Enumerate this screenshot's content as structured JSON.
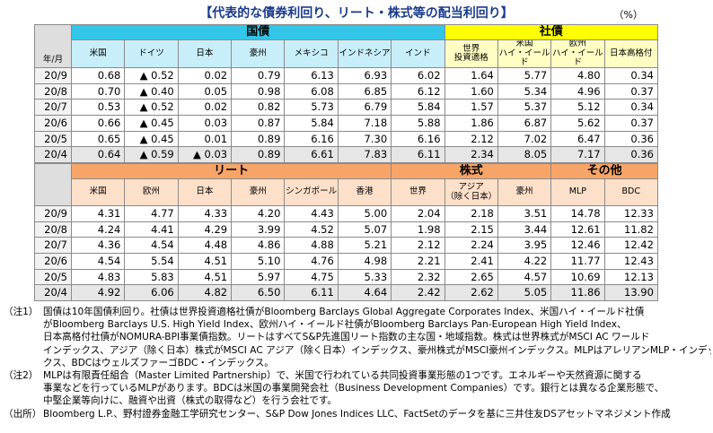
{
  "title": "【代表的な債券利回り、リート・株式等の配当利回り】",
  "unit": "（%）",
  "top_table": {
    "corner": "年/月",
    "groups": [
      {
        "label": "国債",
        "columns": [
          "米国",
          "ドイツ",
          "日本",
          "豪州",
          "メキシコ",
          "インドネシア",
          "インド"
        ]
      },
      {
        "label": "社債",
        "columns": [
          "世界\n投資適格",
          "米国\nハイ・イールド",
          "欧州\nハイ・イールド",
          "日本高格付"
        ]
      }
    ],
    "rows": [
      {
        "period": "20/9",
        "cells": [
          "0.68",
          "▲ 0.52",
          "0.02",
          "0.79",
          "6.13",
          "6.93",
          "6.02",
          "1.64",
          "5.77",
          "4.80",
          "0.34"
        ]
      },
      {
        "period": "20/8",
        "cells": [
          "0.70",
          "▲ 0.40",
          "0.05",
          "0.98",
          "6.08",
          "6.85",
          "6.12",
          "1.60",
          "5.34",
          "4.96",
          "0.37"
        ]
      },
      {
        "period": "20/7",
        "cells": [
          "0.53",
          "▲ 0.52",
          "0.02",
          "0.82",
          "5.73",
          "6.79",
          "5.84",
          "1.57",
          "5.37",
          "5.12",
          "0.34"
        ]
      },
      {
        "period": "20/6",
        "cells": [
          "0.66",
          "▲ 0.45",
          "0.03",
          "0.87",
          "5.84",
          "7.18",
          "5.88",
          "1.86",
          "6.87",
          "5.62",
          "0.37"
        ]
      },
      {
        "period": "20/5",
        "cells": [
          "0.65",
          "▲ 0.45",
          "0.01",
          "0.89",
          "6.16",
          "7.30",
          "6.16",
          "2.12",
          "7.02",
          "6.47",
          "0.36"
        ]
      },
      {
        "period": "20/4",
        "cells": [
          "0.64",
          "▲ 0.59",
          "▲ 0.03",
          "0.89",
          "6.61",
          "7.83",
          "6.11",
          "2.34",
          "8.05",
          "7.17",
          "0.36"
        ]
      }
    ]
  },
  "bottom_table": {
    "groups": [
      {
        "label": "リート",
        "columns": [
          "米国",
          "欧州",
          "日本",
          "豪州",
          "シンガポール",
          "香港"
        ]
      },
      {
        "label": "株式",
        "columns": [
          "世界",
          "アジア\n（除く日本）",
          "豪州"
        ]
      },
      {
        "label": "その他",
        "columns": [
          "MLP",
          "BDC"
        ]
      }
    ],
    "rows": [
      {
        "period": "20/9",
        "cells": [
          "4.31",
          "4.77",
          "4.33",
          "4.20",
          "4.43",
          "5.00",
          "2.04",
          "2.18",
          "3.51",
          "14.78",
          "12.33"
        ]
      },
      {
        "period": "20/8",
        "cells": [
          "4.24",
          "4.41",
          "4.29",
          "3.99",
          "4.52",
          "5.07",
          "1.98",
          "2.15",
          "3.44",
          "12.61",
          "11.82"
        ]
      },
      {
        "period": "20/7",
        "cells": [
          "4.36",
          "4.54",
          "4.48",
          "4.86",
          "4.88",
          "5.21",
          "2.12",
          "2.24",
          "3.95",
          "12.46",
          "12.42"
        ]
      },
      {
        "period": "20/6",
        "cells": [
          "4.54",
          "5.54",
          "4.51",
          "5.10",
          "4.76",
          "4.98",
          "2.21",
          "2.41",
          "4.22",
          "11.77",
          "12.43"
        ]
      },
      {
        "period": "20/5",
        "cells": [
          "4.83",
          "5.83",
          "4.51",
          "5.97",
          "4.75",
          "5.33",
          "2.32",
          "2.65",
          "4.57",
          "10.69",
          "12.13"
        ]
      },
      {
        "period": "20/4",
        "cells": [
          "4.92",
          "6.06",
          "4.82",
          "6.50",
          "6.11",
          "4.64",
          "2.42",
          "2.62",
          "5.05",
          "11.86",
          "13.90"
        ]
      }
    ]
  },
  "notes": [
    {
      "label": "（注1）",
      "lines": [
        "国債は10年国債利回り。社債は世界投資適格社債がBloomberg Barclays Global Aggregate Corporates Index、米国ハイ・イールド社債",
        "がBloomberg Barclays U.S. High Yield Index、欧州ハイ・イールド社債がBloomberg Barclays Pan-European High Yield Index、",
        "日本高格付社債がNOMURA-BPI事業債指数。リートはすべてS&P先進国リート指数の主な国・地域指数。株式は世界株式がMSCI AC ワールド",
        "インデックス、アジア（除く日本）株式がMSCI AC アジア（除く日本）インデックス、豪州株式がMSCI豪州インデックス。MLPはアレリアンMLP・インデッ",
        "クス、BDCはウェルズファーゴBDC・インデックス。"
      ]
    },
    {
      "label": "（注2）",
      "lines": [
        "MLPは有限責任組合（Master Limited Partnership）で、米国で行われている共同投資事業形態の1つです。エネルギーや天然資源に関する",
        "事業などを行っているMLPがあります。BDCは米国の事業開発会社（Business Development Companies）です。銀行とは異なる企業形態で、",
        "中堅企業等向けに、融資や出資（株式の取得など）を行う会社です。"
      ]
    },
    {
      "label": "（出所）",
      "lines": [
        "Bloomberg L.P.、野村證券金融工学研究センター、S&P Dow Jones Indices LLC、FactSetのデータを基に三井住友DSアセットマネジメント作成"
      ]
    }
  ]
}
